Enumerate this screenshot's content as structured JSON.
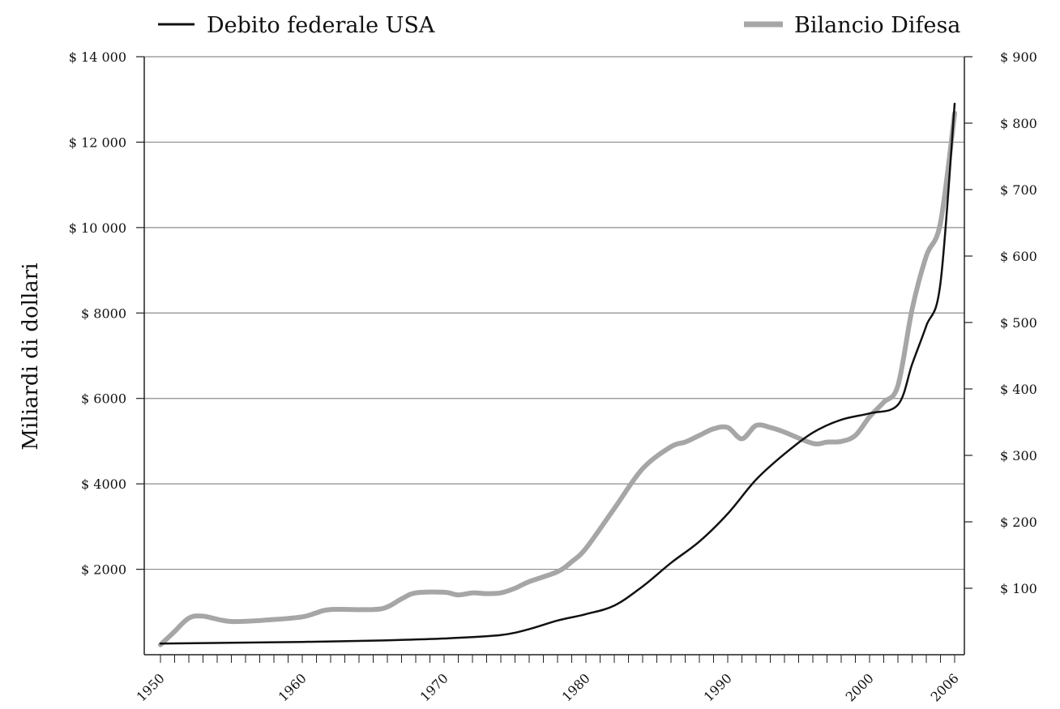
{
  "chart_data": {
    "type": "line",
    "title": "",
    "xlabel": "",
    "ylabel": "Miliardi di dollari",
    "y2label": "",
    "grid": true,
    "legend_placement": "top",
    "xlim": [
      1950,
      2006
    ],
    "ylim": [
      0,
      14000
    ],
    "y2lim": [
      0,
      900
    ],
    "x_tick_labels": [
      "1950",
      "1960",
      "1970",
      "1980",
      "1990",
      "2000",
      "2006"
    ],
    "x_ticks": [
      1950,
      1960,
      1970,
      1980,
      1990,
      2000,
      2006
    ],
    "y_tick_labels": [
      "$ 2000",
      "$ 4000",
      "$ 6000",
      "$ 8000",
      "$ 10 000",
      "$ 12 000",
      "$ 14 000"
    ],
    "y_ticks": [
      2000,
      4000,
      6000,
      8000,
      10000,
      12000,
      14000
    ],
    "y2_tick_labels": [
      "$ 100",
      "$ 200",
      "$ 300",
      "$ 400",
      "$ 500",
      "$ 600",
      "$ 700",
      "$ 800",
      "$ 900"
    ],
    "y2_ticks": [
      100,
      200,
      300,
      400,
      500,
      600,
      700,
      800,
      900
    ],
    "series": [
      {
        "name": "Debito federale USA",
        "axis": "left",
        "color": "#111111",
        "x": [
          1950,
          1955,
          1960,
          1965,
          1970,
          1974,
          1976,
          1978,
          1980,
          1982,
          1984,
          1986,
          1988,
          1990,
          1992,
          1994,
          1996,
          1998,
          2000,
          2002,
          2003,
          2004,
          2005,
          2006
        ],
        "y": [
          260,
          280,
          300,
          330,
          380,
          460,
          600,
          800,
          950,
          1150,
          1600,
          2150,
          2650,
          3300,
          4100,
          4700,
          5200,
          5500,
          5650,
          5850,
          6800,
          7700,
          8700,
          12900
        ]
      },
      {
        "name": "Bilancio Difesa",
        "axis": "right",
        "color": "#a6a6a6",
        "x": [
          1950,
          1951,
          1952,
          1953,
          1955,
          1958,
          1960,
          1961,
          1962,
          1965,
          1966,
          1967,
          1968,
          1970,
          1971,
          1972,
          1973,
          1974,
          1975,
          1976,
          1978,
          1979,
          1980,
          1982,
          1984,
          1986,
          1987,
          1988,
          1989,
          1990,
          1991,
          1992,
          1993,
          1994,
          1996,
          1997,
          1998,
          1999,
          2000,
          2001,
          2002,
          2003,
          2004,
          2005,
          2006
        ],
        "y": [
          15,
          35,
          55,
          58,
          50,
          53,
          57,
          63,
          68,
          68,
          72,
          84,
          93,
          94,
          90,
          93,
          92,
          93,
          100,
          110,
          125,
          140,
          160,
          220,
          280,
          313,
          320,
          330,
          340,
          342,
          325,
          345,
          342,
          335,
          318,
          320,
          321,
          330,
          358,
          380,
          405,
          520,
          600,
          650,
          815
        ]
      }
    ]
  }
}
